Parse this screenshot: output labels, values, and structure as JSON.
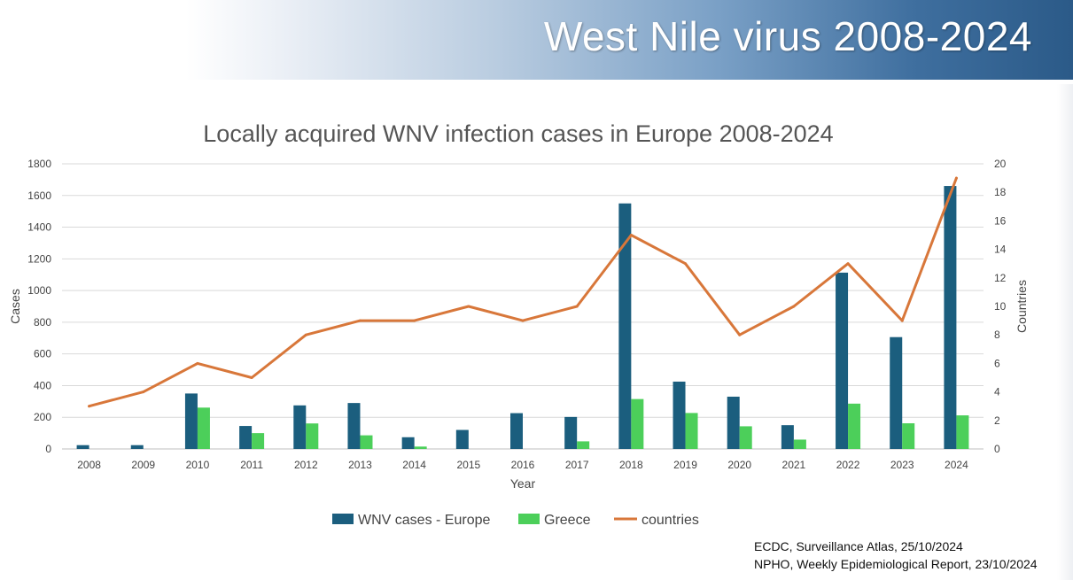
{
  "slide": {
    "title": "West Nile virus 2008-2024",
    "sources": [
      "ECDC, Surveillance Atlas, 25/10/2024",
      "NPHO, Weekly Epidemiological Report, 23/10/2024"
    ]
  },
  "chart_data": {
    "type": "bar",
    "title": "Locally acquired WNV infection cases in Europe 2008-2024",
    "xlabel": "Year",
    "ylabel": "Cases",
    "y2label": "Countries",
    "ylim": [
      0,
      1800
    ],
    "y2lim": [
      0,
      20
    ],
    "yticks": [
      "0",
      "200",
      "400",
      "600",
      "800",
      "1000",
      "1200",
      "1400",
      "1600",
      "1800"
    ],
    "y2ticks": [
      "0",
      "2",
      "4",
      "6",
      "8",
      "10",
      "12",
      "14",
      "16",
      "18",
      "20"
    ],
    "grid": true,
    "legend_position": "bottom",
    "categories": [
      "2008",
      "2009",
      "2010",
      "2011",
      "2012",
      "2013",
      "2014",
      "2015",
      "2016",
      "2017",
      "2018",
      "2019",
      "2020",
      "2021",
      "2022",
      "2023",
      "2024"
    ],
    "series": [
      {
        "name": "WNV cases - Europe",
        "kind": "bar",
        "axis": "left",
        "color": "#1b5e7e",
        "values": [
          24,
          24,
          350,
          145,
          275,
          290,
          74,
          120,
          226,
          202,
          1550,
          425,
          330,
          150,
          1113,
          706,
          1660
        ]
      },
      {
        "name": "Greece",
        "kind": "bar",
        "axis": "left",
        "color": "#4ccf5a",
        "values": [
          0,
          0,
          261,
          100,
          161,
          86,
          15,
          0,
          0,
          48,
          315,
          227,
          143,
          59,
          286,
          162,
          212
        ]
      },
      {
        "name": "countries",
        "kind": "line",
        "axis": "right",
        "color": "#d8773a",
        "values": [
          3,
          4,
          6,
          5,
          8,
          9,
          9,
          10,
          9,
          10,
          15,
          13,
          8,
          10,
          13,
          9,
          19
        ]
      }
    ]
  }
}
